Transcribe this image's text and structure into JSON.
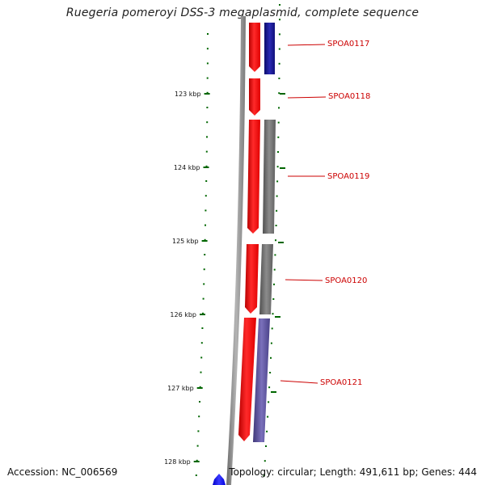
{
  "title": "Ruegeria pomeroyi DSS-3 megaplasmid, complete sequence",
  "accession": "Accession: NC_006569",
  "topology": "Topology: circular; Length: 491,611 bp; Genes: 444",
  "ruler": [
    {
      "label": "123 kbp"
    },
    {
      "label": "124 kbp"
    },
    {
      "label": "125 kbp"
    },
    {
      "label": "126 kbp"
    },
    {
      "label": "127 kbp"
    },
    {
      "label": "128 kbp"
    }
  ],
  "genes": [
    {
      "label": "SPOA0117",
      "strand": "forward",
      "color": "#ff0000"
    },
    {
      "label": "SPOA0118",
      "strand": "forward",
      "color": "#ff0000"
    },
    {
      "label": "SPOA0119",
      "strand": "forward",
      "color": "#ff0000"
    },
    {
      "label": "SPOA0120",
      "strand": "forward",
      "color": "#ff0000"
    },
    {
      "label": "SPOA0121",
      "strand": "forward",
      "color": "#ff0000"
    }
  ],
  "colors": {
    "ruler": "#006600",
    "backbone": "#8a8a8a",
    "gene": "#ff0000",
    "label": "#cc0000",
    "cog_navy": "#14148c",
    "cog_gray": "#6e6e6e",
    "cog_purple": "#5a4f9a",
    "reverse_gene": "#0a0aff"
  }
}
